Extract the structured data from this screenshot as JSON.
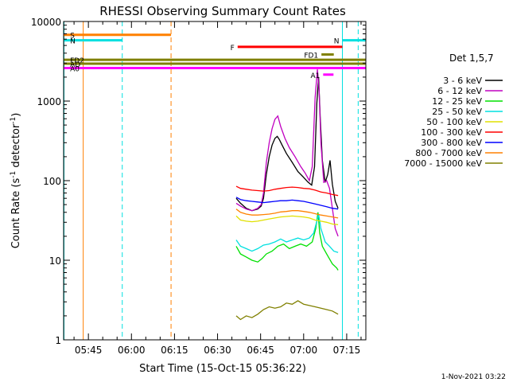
{
  "chart_data": {
    "type": "line",
    "title": "RHESSI Observing Summary Count Rates",
    "xlabel": "Start Time (15-Oct-15 05:36:22)",
    "ylabel_main": "Count Rate (s",
    "ylabel_sup1": "-1",
    "ylabel_mid": " detector",
    "ylabel_sup2": "-1",
    "ylabel_end": ")",
    "yscale": "log",
    "ylim": [
      1,
      10000
    ],
    "xlim": [
      "05:36:22",
      "07:21:40"
    ],
    "x_ticks": [
      "05:45",
      "06:00",
      "06:15",
      "06:30",
      "06:45",
      "07:00",
      "07:15"
    ],
    "y_ticks": [
      "1",
      "10",
      "100",
      "1000",
      "10000"
    ],
    "x_ticks_min": [
      345,
      360,
      375,
      390,
      405,
      420,
      435
    ],
    "x_minor_min": [
      340,
      350,
      355,
      365,
      370,
      380,
      385,
      395,
      400,
      410,
      415,
      425,
      430,
      440
    ],
    "xlim_min": [
      336.37,
      441.67
    ],
    "legend_title": "Det 1,5,7",
    "legend_position": "right",
    "footer": "1-Nov-2021 03:22",
    "series": [
      {
        "name": "3 - 6 keV",
        "color": "#000000",
        "points": [
          [
            396.5,
            60
          ],
          [
            398,
            52
          ],
          [
            400,
            45
          ],
          [
            402,
            42
          ],
          [
            404,
            44
          ],
          [
            405.2,
            48
          ],
          [
            406,
            60
          ],
          [
            407,
            120
          ],
          [
            408,
            200
          ],
          [
            409,
            280
          ],
          [
            410,
            340
          ],
          [
            410.8,
            360
          ],
          [
            411.5,
            330
          ],
          [
            412.5,
            280
          ],
          [
            414,
            220
          ],
          [
            416,
            170
          ],
          [
            418,
            130
          ],
          [
            420,
            110
          ],
          [
            421.5,
            96
          ],
          [
            422.8,
            88
          ],
          [
            423.8,
            150
          ],
          [
            424.6,
            950
          ],
          [
            425.2,
            2000
          ],
          [
            425.8,
            600
          ],
          [
            426.5,
            180
          ],
          [
            427.5,
            95
          ],
          [
            428.4,
            120
          ],
          [
            429.2,
            180
          ],
          [
            430,
            90
          ],
          [
            431,
            55
          ],
          [
            432,
            45
          ]
        ]
      },
      {
        "name": "6 - 12 keV",
        "color": "#c000c0",
        "points": [
          [
            396.5,
            52
          ],
          [
            398,
            48
          ],
          [
            400,
            44
          ],
          [
            402,
            42
          ],
          [
            404,
            45
          ],
          [
            405.2,
            50
          ],
          [
            406,
            70
          ],
          [
            407,
            170
          ],
          [
            408,
            300
          ],
          [
            409,
            450
          ],
          [
            410,
            590
          ],
          [
            411,
            650
          ],
          [
            412,
            480
          ],
          [
            413.5,
            340
          ],
          [
            415,
            260
          ],
          [
            417,
            200
          ],
          [
            419,
            150
          ],
          [
            420.5,
            125
          ],
          [
            422,
            100
          ],
          [
            423,
            150
          ],
          [
            424,
            1100
          ],
          [
            424.8,
            2500
          ],
          [
            425.4,
            1300
          ],
          [
            426,
            300
          ],
          [
            427,
            95
          ],
          [
            428,
            100
          ],
          [
            429,
            80
          ],
          [
            430,
            45
          ],
          [
            431,
            25
          ],
          [
            432,
            20
          ]
        ]
      },
      {
        "name": "12 - 25 keV",
        "color": "#00e000",
        "points": [
          [
            396.5,
            15
          ],
          [
            398,
            12
          ],
          [
            400,
            11
          ],
          [
            402,
            10
          ],
          [
            404,
            9.5
          ],
          [
            405.5,
            10.5
          ],
          [
            407,
            12
          ],
          [
            409,
            13
          ],
          [
            411,
            15
          ],
          [
            413,
            16
          ],
          [
            415,
            14
          ],
          [
            417,
            15
          ],
          [
            419,
            16
          ],
          [
            421,
            15
          ],
          [
            423,
            17
          ],
          [
            424.2,
            25
          ],
          [
            425,
            40
          ],
          [
            425.6,
            22
          ],
          [
            426.5,
            15
          ],
          [
            428,
            12
          ],
          [
            430,
            9
          ],
          [
            431.5,
            8
          ],
          [
            432,
            7.5
          ]
        ]
      },
      {
        "name": "25 - 50 keV",
        "color": "#00e0e0",
        "points": [
          [
            396.5,
            18
          ],
          [
            398,
            15
          ],
          [
            400,
            14
          ],
          [
            402,
            13
          ],
          [
            404,
            14
          ],
          [
            406,
            15.5
          ],
          [
            408,
            16
          ],
          [
            410,
            17
          ],
          [
            412,
            18.5
          ],
          [
            414,
            17
          ],
          [
            416,
            18
          ],
          [
            418,
            19
          ],
          [
            420,
            18
          ],
          [
            422,
            19
          ],
          [
            423.5,
            22
          ],
          [
            424.5,
            30
          ],
          [
            425.2,
            38
          ],
          [
            426,
            25
          ],
          [
            427.5,
            17
          ],
          [
            429,
            15
          ],
          [
            430.5,
            13
          ],
          [
            432,
            12.5
          ]
        ]
      },
      {
        "name": "50 - 100 keV",
        "color": "#e0e000",
        "points": [
          [
            396.5,
            36
          ],
          [
            398,
            32
          ],
          [
            400,
            31
          ],
          [
            402,
            30.5
          ],
          [
            404,
            31
          ],
          [
            406,
            32
          ],
          [
            408,
            33
          ],
          [
            410,
            34
          ],
          [
            412,
            35
          ],
          [
            414,
            35.5
          ],
          [
            416,
            36
          ],
          [
            418,
            35.5
          ],
          [
            420,
            35
          ],
          [
            422,
            34
          ],
          [
            424,
            32
          ],
          [
            426,
            31
          ],
          [
            428,
            30
          ],
          [
            430,
            28.5
          ],
          [
            432,
            28
          ]
        ]
      },
      {
        "name": "100 - 300 keV",
        "color": "#ff0000",
        "points": [
          [
            396.5,
            85
          ],
          [
            398,
            80
          ],
          [
            400,
            78
          ],
          [
            402,
            76
          ],
          [
            404,
            75
          ],
          [
            406,
            74
          ],
          [
            408,
            75
          ],
          [
            410,
            78
          ],
          [
            412,
            80
          ],
          [
            414,
            82
          ],
          [
            416,
            83
          ],
          [
            418,
            82
          ],
          [
            420,
            80
          ],
          [
            422,
            79
          ],
          [
            424,
            76
          ],
          [
            426,
            72
          ],
          [
            428,
            70
          ],
          [
            430,
            67
          ],
          [
            432,
            65
          ]
        ]
      },
      {
        "name": "300 - 800 keV",
        "color": "#0000ff",
        "points": [
          [
            396.5,
            62
          ],
          [
            398,
            58
          ],
          [
            400,
            56
          ],
          [
            402,
            55
          ],
          [
            404,
            54
          ],
          [
            406,
            53
          ],
          [
            408,
            54
          ],
          [
            410,
            55
          ],
          [
            412,
            56
          ],
          [
            414,
            56
          ],
          [
            416,
            57
          ],
          [
            418,
            56
          ],
          [
            420,
            55
          ],
          [
            422,
            53
          ],
          [
            424,
            51
          ],
          [
            426,
            49
          ],
          [
            428,
            47
          ],
          [
            430,
            45
          ],
          [
            432,
            44
          ]
        ]
      },
      {
        "name": "800 - 7000 keV",
        "color": "#ff8000",
        "points": [
          [
            396.5,
            44
          ],
          [
            398,
            40
          ],
          [
            400,
            38
          ],
          [
            402,
            37
          ],
          [
            404,
            37
          ],
          [
            406,
            37.5
          ],
          [
            408,
            38
          ],
          [
            410,
            39
          ],
          [
            412,
            40.5
          ],
          [
            414,
            41
          ],
          [
            416,
            42
          ],
          [
            418,
            42
          ],
          [
            420,
            41
          ],
          [
            422,
            40
          ],
          [
            424,
            38.5
          ],
          [
            426,
            37
          ],
          [
            428,
            36
          ],
          [
            430,
            35
          ],
          [
            432,
            34
          ]
        ]
      },
      {
        "name": "7000 - 15000 keV",
        "color": "#808000",
        "points": [
          [
            396.5,
            2
          ],
          [
            398,
            1.8
          ],
          [
            400,
            2
          ],
          [
            402,
            1.9
          ],
          [
            404,
            2.1
          ],
          [
            406,
            2.4
          ],
          [
            408,
            2.6
          ],
          [
            410,
            2.5
          ],
          [
            412,
            2.6
          ],
          [
            414,
            2.9
          ],
          [
            416,
            2.8
          ],
          [
            418,
            3.1
          ],
          [
            420,
            2.8
          ],
          [
            422,
            2.7
          ],
          [
            424,
            2.6
          ],
          [
            426,
            2.5
          ],
          [
            428,
            2.4
          ],
          [
            430,
            2.3
          ],
          [
            432,
            2.1
          ]
        ]
      }
    ],
    "flag_bars": [
      {
        "label": "S",
        "color": "#ff8000",
        "x0": 336.4,
        "x1": 373.8,
        "y": 6800
      },
      {
        "label": "N",
        "color": "#00e0e0",
        "x0": 336.4,
        "x1": 356.8,
        "y": 5800
      },
      {
        "label": "N",
        "color": "#00e0e0",
        "x0": 433.5,
        "x1": 441.7,
        "y": 5800
      },
      {
        "label": "F",
        "color": "#ff0000",
        "x0": 397.0,
        "x1": 433.5,
        "y": 4800
      },
      {
        "label": "FD1",
        "color": "#808000",
        "x0": 426.2,
        "x1": 430.5,
        "y": 3850
      },
      {
        "label": "FD2",
        "color": "#808000",
        "x0": 336.4,
        "x1": 441.7,
        "y": 3300
      },
      {
        "label": "AD",
        "color": "#808000",
        "x0": 336.4,
        "x1": 441.7,
        "y": 2950
      },
      {
        "label": "A0",
        "color": "#ff00ff",
        "x0": 336.4,
        "x1": 441.7,
        "y": 2600
      },
      {
        "label": "A1",
        "color": "#ff00ff",
        "x0": 426.8,
        "x1": 430.4,
        "y": 2150
      }
    ],
    "vlines": [
      {
        "x": 336.5,
        "color": "#00e0e0",
        "dash": false
      },
      {
        "x": 343.2,
        "color": "#ff8000",
        "dash": false
      },
      {
        "x": 356.8,
        "color": "#00e0e0",
        "dash": true
      },
      {
        "x": 373.8,
        "color": "#ff8000",
        "dash": true
      },
      {
        "x": 433.5,
        "color": "#00e0e0",
        "dash": false
      },
      {
        "x": 439.0,
        "color": "#00e0e0",
        "dash": true
      }
    ]
  }
}
